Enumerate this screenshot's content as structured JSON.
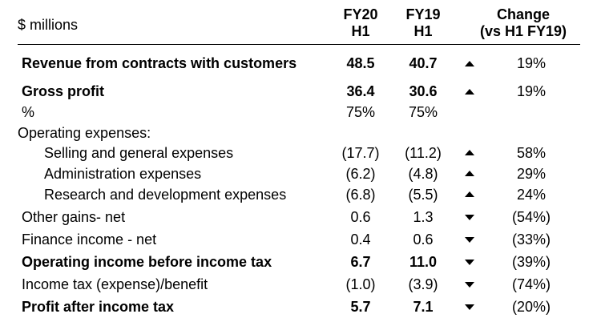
{
  "header": {
    "units": "$ millions",
    "col_fy20": [
      "FY20",
      "H1"
    ],
    "col_fy19": [
      "FY19",
      "H1"
    ],
    "col_change": [
      "Change",
      "(vs H1 FY19)"
    ]
  },
  "rows": [
    {
      "label": "Revenue from contracts with customers",
      "fy20": "48.5",
      "fy19": "40.7",
      "arrow": "up",
      "change": "19%"
    },
    {
      "label": "Gross profit",
      "fy20": "36.4",
      "fy19": "30.6",
      "arrow": "up",
      "change": "19%"
    },
    {
      "label": "%",
      "fy20": "75%",
      "fy19": "75%",
      "arrow": "",
      "change": ""
    },
    {
      "label": "Operating expenses:",
      "fy20": "",
      "fy19": "",
      "arrow": "",
      "change": ""
    },
    {
      "label": "Selling and general expenses",
      "fy20": "(17.7)",
      "fy19": "(11.2)",
      "arrow": "up",
      "change": "58%"
    },
    {
      "label": "Administration expenses",
      "fy20": "(6.2)",
      "fy19": "(4.8)",
      "arrow": "up",
      "change": "29%"
    },
    {
      "label": "Research and development expenses",
      "fy20": "(6.8)",
      "fy19": "(5.5)",
      "arrow": "up",
      "change": "24%"
    },
    {
      "label": "Other gains- net",
      "fy20": "0.6",
      "fy19": "1.3",
      "arrow": "down",
      "change": "(54%)"
    },
    {
      "label": "Finance income - net",
      "fy20": "0.4",
      "fy19": "0.6",
      "arrow": "down",
      "change": "(33%)"
    },
    {
      "label": "Operating income before income tax",
      "fy20": "6.7",
      "fy19": "11.0",
      "arrow": "down",
      "change": "(39%)"
    },
    {
      "label": "Income tax (expense)/benefit",
      "fy20": "(1.0)",
      "fy19": "(3.9)",
      "arrow": "down",
      "change": "(74%)"
    },
    {
      "label": "Profit after income tax",
      "fy20": "5.7",
      "fy19": "7.1",
      "arrow": "down",
      "change": "(20%)"
    }
  ]
}
